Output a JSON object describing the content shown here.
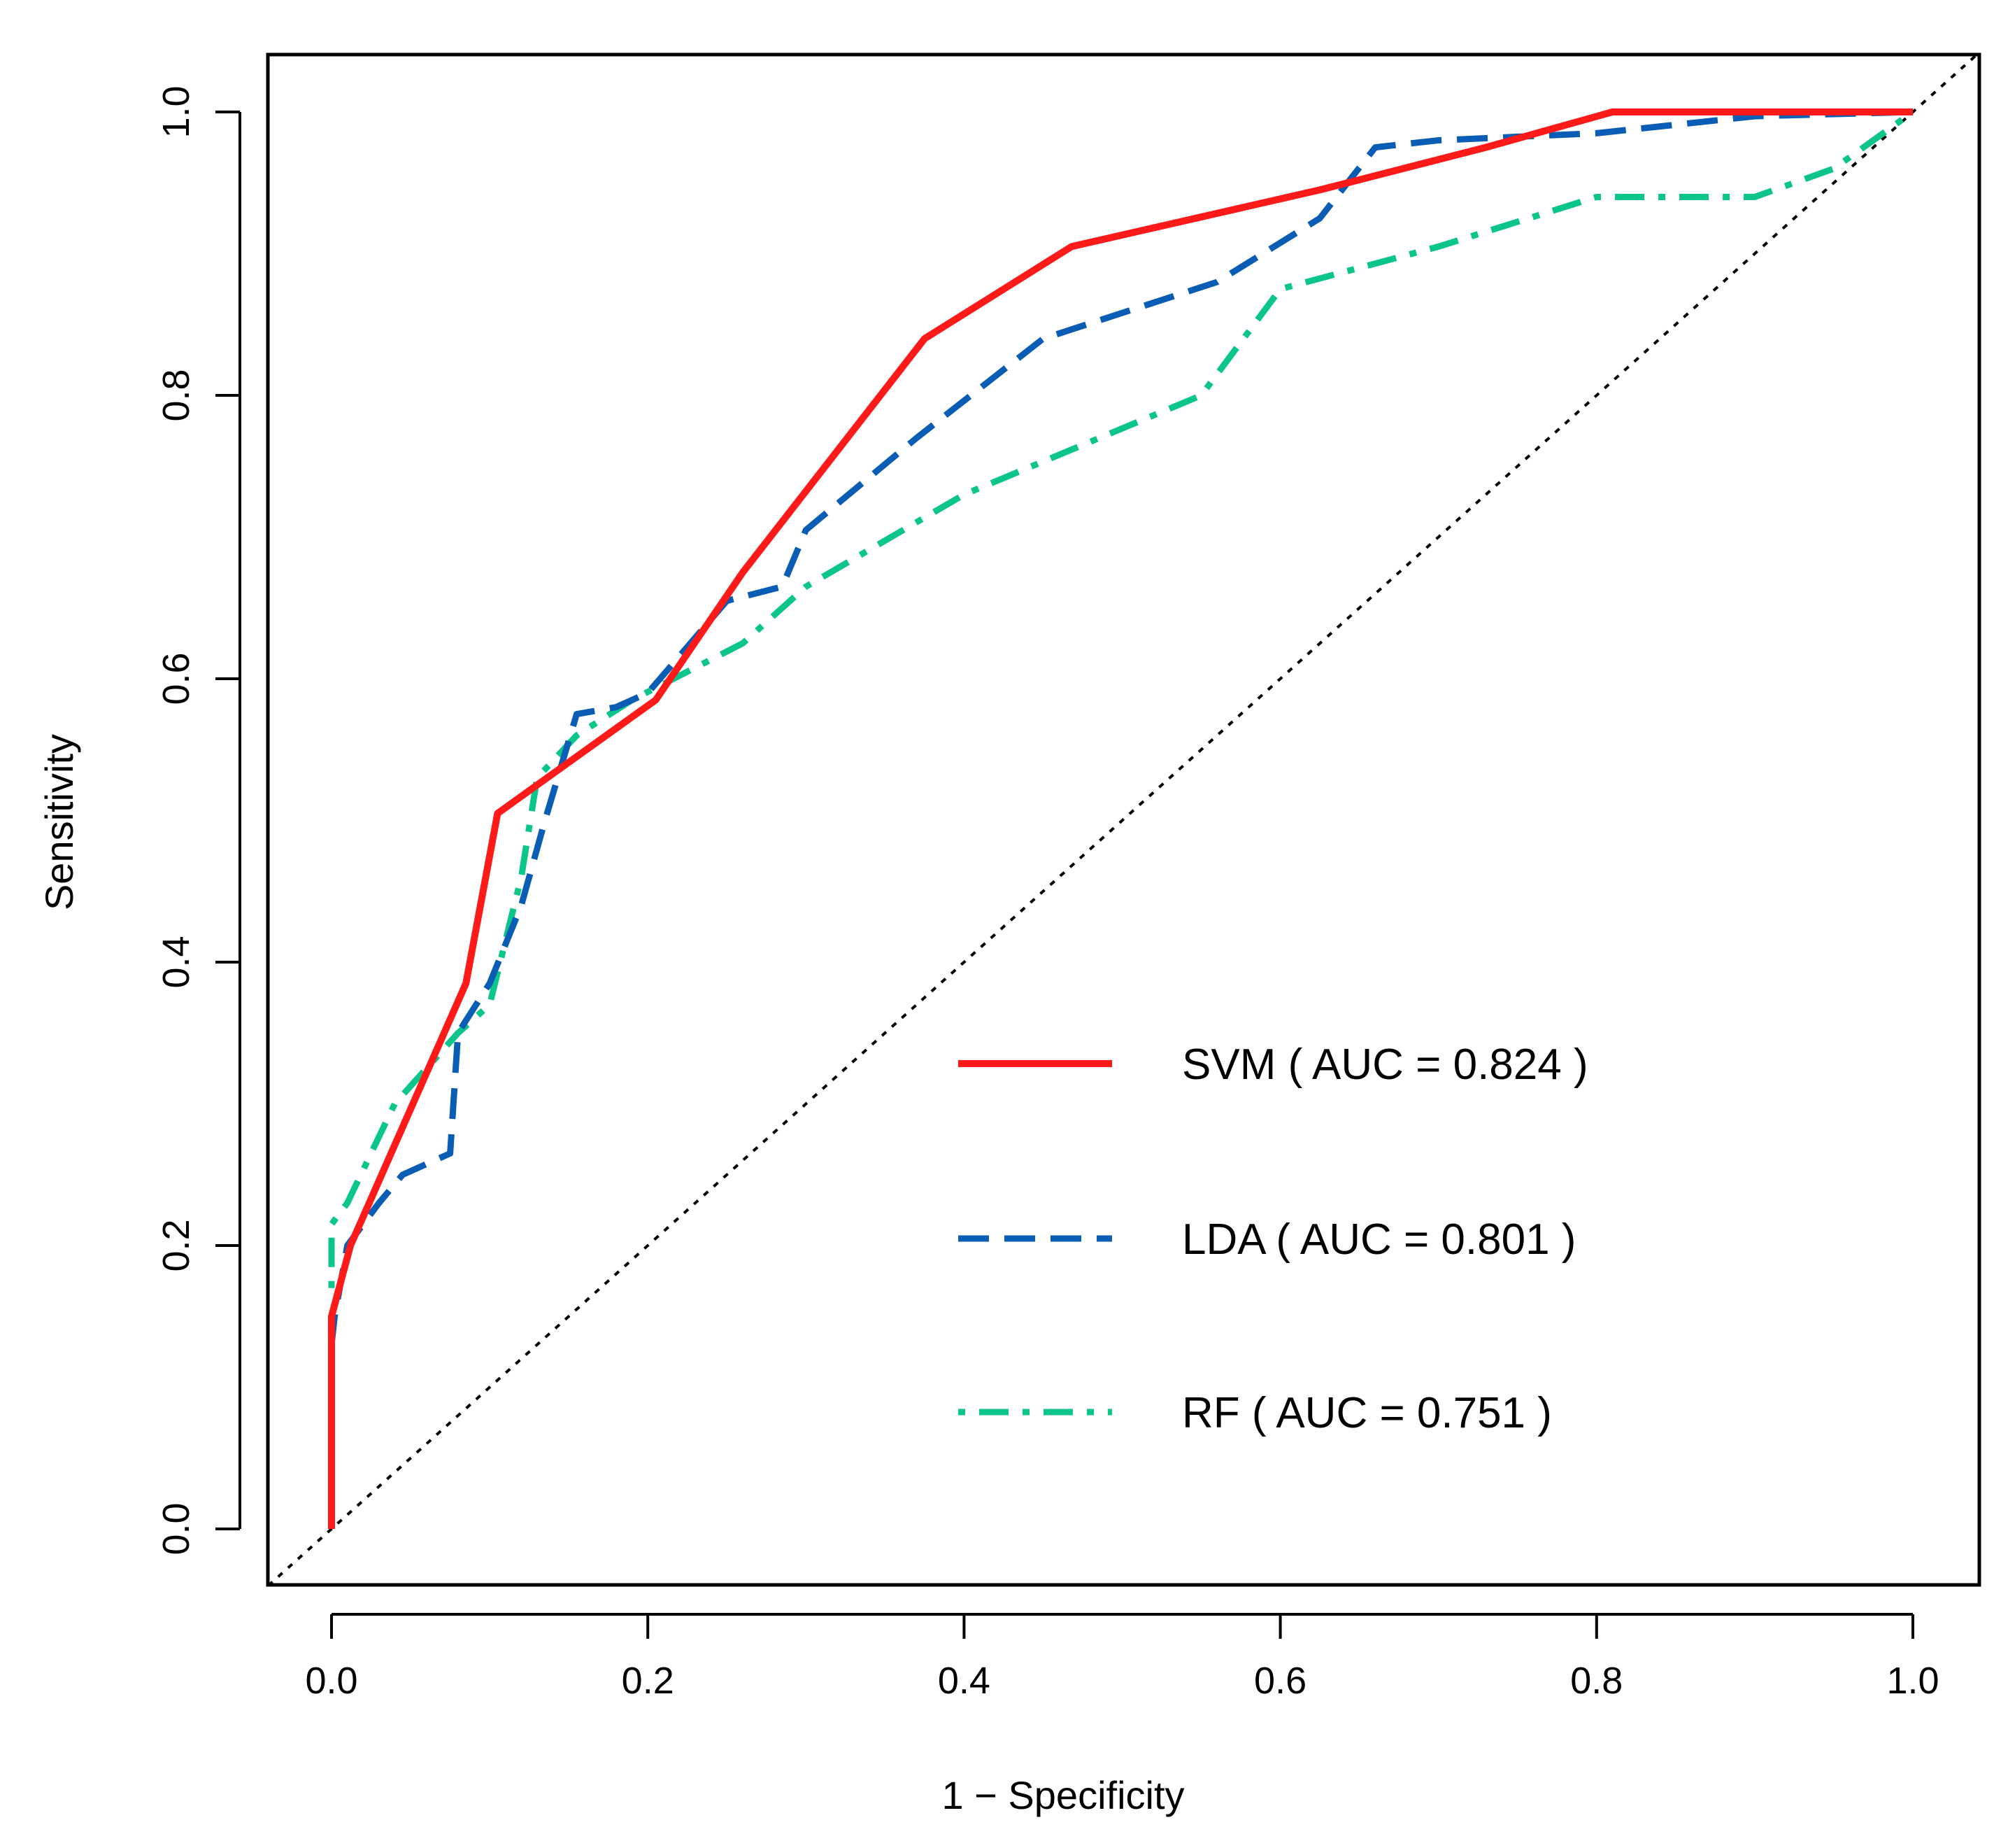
{
  "chart_data": {
    "type": "line",
    "title": "",
    "xlabel": "1 − Specificity",
    "ylabel": "Sensitivity",
    "xlim": [
      0,
      1
    ],
    "ylim": [
      0,
      1
    ],
    "xticks": [
      0.0,
      0.2,
      0.4,
      0.6,
      0.8,
      1.0
    ],
    "yticks": [
      0.0,
      0.2,
      0.4,
      0.6,
      0.8,
      1.0
    ],
    "xtick_labels": [
      "0.0",
      "0.2",
      "0.4",
      "0.6",
      "0.8",
      "1.0"
    ],
    "ytick_labels": [
      "0.0",
      "0.2",
      "0.4",
      "0.6",
      "0.8",
      "1.0"
    ],
    "grid": false,
    "legend_position": "bottom-right",
    "reference_line": {
      "name": "chance",
      "x": [
        0,
        1
      ],
      "y": [
        0,
        1
      ],
      "color": "#000000",
      "style": "dotted"
    },
    "series": [
      {
        "name": "SVM",
        "legend_label": "SVM ( AUC = 0.824 )",
        "auc": 0.824,
        "color": "#ff1a1a",
        "style": "solid",
        "x": [
          0.0,
          0.0,
          0.012,
          0.085,
          0.105,
          0.205,
          0.26,
          0.375,
          0.468,
          0.625,
          0.73,
          0.81,
          1.0
        ],
        "y": [
          0.0,
          0.15,
          0.2,
          0.385,
          0.505,
          0.585,
          0.675,
          0.84,
          0.905,
          0.945,
          0.975,
          1.0,
          1.0
        ]
      },
      {
        "name": "LDA",
        "legend_label": "LDA ( AUC = 0.801 )",
        "auc": 0.801,
        "color": "#0a5db5",
        "style": "dashed",
        "x": [
          0.0,
          0.002,
          0.01,
          0.03,
          0.045,
          0.065,
          0.075,
          0.08,
          0.1,
          0.12,
          0.135,
          0.155,
          0.18,
          0.2,
          0.25,
          0.285,
          0.3,
          0.37,
          0.45,
          0.56,
          0.625,
          0.66,
          0.7,
          0.8,
          0.9,
          1.0
        ],
        "y": [
          0.13,
          0.15,
          0.2,
          0.23,
          0.25,
          0.26,
          0.265,
          0.35,
          0.385,
          0.44,
          0.5,
          0.575,
          0.58,
          0.59,
          0.655,
          0.665,
          0.705,
          0.77,
          0.84,
          0.88,
          0.925,
          0.975,
          0.98,
          0.985,
          0.997,
          1.0
        ]
      },
      {
        "name": "RF",
        "legend_label": "RF ( AUC = 0.751 )",
        "auc": 0.751,
        "color": "#0bc58a",
        "style": "dotdash",
        "x": [
          0.0,
          0.0,
          0.01,
          0.04,
          0.08,
          0.1,
          0.12,
          0.13,
          0.155,
          0.19,
          0.26,
          0.3,
          0.4,
          0.55,
          0.6,
          0.7,
          0.8,
          0.9,
          0.95,
          1.0
        ],
        "y": [
          0.17,
          0.215,
          0.23,
          0.3,
          0.35,
          0.37,
          0.46,
          0.53,
          0.56,
          0.585,
          0.625,
          0.665,
          0.73,
          0.8,
          0.875,
          0.905,
          0.94,
          0.94,
          0.96,
          1.0
        ]
      }
    ]
  }
}
